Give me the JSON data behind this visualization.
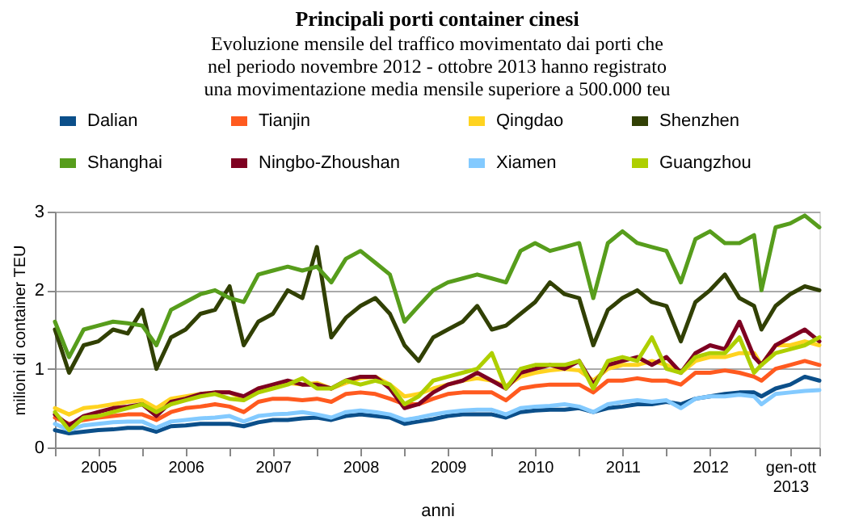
{
  "chart_data": {
    "type": "line",
    "title": "Principali porti container cinesi",
    "subtitle": "Evoluzione mensile del traffico movimentato dai porti che\nnel periodo novembre 2012 - ottobre 2013 hanno registrato\nuna movimentazione media mensile superiore a 500.000 teu",
    "xlabel": "anni",
    "ylabel": "milioni di container TEU",
    "x": [
      "2005-01",
      "2005-03",
      "2005-05",
      "2005-07",
      "2005-09",
      "2005-11",
      "2006-01",
      "2006-03",
      "2006-05",
      "2006-07",
      "2006-09",
      "2006-11",
      "2007-01",
      "2007-03",
      "2007-05",
      "2007-07",
      "2007-09",
      "2007-11",
      "2008-01",
      "2008-03",
      "2008-05",
      "2008-07",
      "2008-09",
      "2008-11",
      "2009-01",
      "2009-03",
      "2009-05",
      "2009-07",
      "2009-09",
      "2009-11",
      "2010-01",
      "2010-03",
      "2010-05",
      "2010-07",
      "2010-09",
      "2010-11",
      "2011-01",
      "2011-03",
      "2011-05",
      "2011-07",
      "2011-09",
      "2011-11",
      "2012-01",
      "2012-03",
      "2012-05",
      "2012-07",
      "2012-09",
      "2012-11",
      "2013-01",
      "2013-02",
      "2013-04",
      "2013-06",
      "2013-08",
      "2013-10"
    ],
    "series": [
      {
        "name": "Dalian",
        "color": "#0b4f8a",
        "values": [
          0.22,
          0.18,
          0.2,
          0.22,
          0.23,
          0.25,
          0.25,
          0.2,
          0.27,
          0.28,
          0.3,
          0.3,
          0.3,
          0.27,
          0.32,
          0.35,
          0.35,
          0.37,
          0.38,
          0.35,
          0.4,
          0.42,
          0.4,
          0.38,
          0.3,
          0.33,
          0.36,
          0.4,
          0.42,
          0.42,
          0.42,
          0.38,
          0.45,
          0.47,
          0.48,
          0.48,
          0.5,
          0.45,
          0.5,
          0.52,
          0.55,
          0.55,
          0.58,
          0.55,
          0.62,
          0.65,
          0.68,
          0.7,
          0.7,
          0.65,
          0.75,
          0.8,
          0.9,
          0.85
        ]
      },
      {
        "name": "Tianjin",
        "color": "#ff5a1f",
        "values": [
          0.38,
          0.3,
          0.35,
          0.38,
          0.4,
          0.42,
          0.42,
          0.35,
          0.45,
          0.5,
          0.52,
          0.55,
          0.52,
          0.45,
          0.58,
          0.62,
          0.62,
          0.6,
          0.62,
          0.58,
          0.68,
          0.7,
          0.68,
          0.62,
          0.55,
          0.55,
          0.62,
          0.68,
          0.7,
          0.7,
          0.7,
          0.6,
          0.75,
          0.78,
          0.8,
          0.8,
          0.8,
          0.7,
          0.85,
          0.85,
          0.88,
          0.85,
          0.85,
          0.8,
          0.95,
          0.95,
          0.98,
          0.95,
          0.9,
          0.85,
          1.0,
          1.05,
          1.1,
          1.05
        ]
      },
      {
        "name": "Qingdao",
        "color": "#ffd320",
        "values": [
          0.5,
          0.42,
          0.5,
          0.52,
          0.55,
          0.58,
          0.6,
          0.5,
          0.62,
          0.65,
          0.68,
          0.7,
          0.7,
          0.62,
          0.75,
          0.78,
          0.82,
          0.8,
          0.82,
          0.75,
          0.82,
          0.88,
          0.9,
          0.8,
          0.65,
          0.68,
          0.75,
          0.8,
          0.85,
          0.88,
          0.85,
          0.78,
          0.9,
          0.95,
          0.98,
          1.0,
          0.98,
          0.85,
          1.0,
          1.05,
          1.05,
          1.1,
          1.05,
          0.95,
          1.1,
          1.15,
          1.15,
          1.2,
          1.2,
          1.05,
          1.3,
          1.3,
          1.35,
          1.3
        ]
      },
      {
        "name": "Shenzhen",
        "color": "#314004",
        "values": [
          1.5,
          0.95,
          1.3,
          1.35,
          1.5,
          1.45,
          1.75,
          1.0,
          1.4,
          1.5,
          1.7,
          1.75,
          2.05,
          1.3,
          1.6,
          1.7,
          2.0,
          1.9,
          2.55,
          1.4,
          1.65,
          1.8,
          1.9,
          1.7,
          1.3,
          1.1,
          1.4,
          1.5,
          1.6,
          1.8,
          1.5,
          1.55,
          1.7,
          1.85,
          2.1,
          1.95,
          1.9,
          1.3,
          1.75,
          1.9,
          2.0,
          1.85,
          1.8,
          1.35,
          1.85,
          2.0,
          2.2,
          1.9,
          1.8,
          1.5,
          1.8,
          1.95,
          2.05,
          2.0
        ]
      },
      {
        "name": "Shanghai",
        "color": "#579d1c",
        "values": [
          1.6,
          1.15,
          1.5,
          1.55,
          1.6,
          1.58,
          1.55,
          1.3,
          1.75,
          1.85,
          1.95,
          2.0,
          1.9,
          1.85,
          2.2,
          2.25,
          2.3,
          2.25,
          2.3,
          2.1,
          2.4,
          2.5,
          2.35,
          2.2,
          1.6,
          1.8,
          2.0,
          2.1,
          2.15,
          2.2,
          2.15,
          2.1,
          2.5,
          2.6,
          2.5,
          2.55,
          2.6,
          1.9,
          2.6,
          2.75,
          2.6,
          2.55,
          2.5,
          2.1,
          2.65,
          2.75,
          2.6,
          2.6,
          2.7,
          2.0,
          2.8,
          2.85,
          2.95,
          2.8
        ]
      },
      {
        "name": "Ningbo-Zhoushan",
        "color": "#7e0021",
        "values": [
          0.42,
          0.28,
          0.4,
          0.45,
          0.5,
          0.52,
          0.55,
          0.4,
          0.58,
          0.62,
          0.68,
          0.7,
          0.7,
          0.65,
          0.75,
          0.8,
          0.85,
          0.8,
          0.8,
          0.75,
          0.85,
          0.9,
          0.9,
          0.75,
          0.5,
          0.55,
          0.7,
          0.8,
          0.85,
          0.95,
          0.85,
          0.75,
          0.95,
          1.0,
          1.05,
          1.0,
          1.1,
          0.8,
          1.05,
          1.1,
          1.15,
          1.05,
          1.15,
          0.95,
          1.2,
          1.3,
          1.25,
          1.6,
          1.15,
          1.05,
          1.3,
          1.4,
          1.5,
          1.35
        ]
      },
      {
        "name": "Xiamen",
        "color": "#83caff",
        "values": [
          0.3,
          0.22,
          0.28,
          0.3,
          0.32,
          0.33,
          0.33,
          0.25,
          0.33,
          0.35,
          0.37,
          0.38,
          0.4,
          0.33,
          0.4,
          0.42,
          0.43,
          0.45,
          0.42,
          0.38,
          0.45,
          0.47,
          0.45,
          0.42,
          0.35,
          0.38,
          0.42,
          0.45,
          0.47,
          0.48,
          0.48,
          0.42,
          0.5,
          0.52,
          0.53,
          0.55,
          0.52,
          0.45,
          0.55,
          0.58,
          0.6,
          0.58,
          0.6,
          0.5,
          0.62,
          0.65,
          0.65,
          0.67,
          0.65,
          0.55,
          0.68,
          0.7,
          0.72,
          0.73
        ]
      },
      {
        "name": "Guangzhou",
        "color": "#aecf00",
        "values": [
          0.45,
          0.22,
          0.38,
          0.4,
          0.45,
          0.5,
          0.55,
          0.45,
          0.55,
          0.6,
          0.65,
          0.68,
          0.62,
          0.6,
          0.7,
          0.75,
          0.8,
          0.88,
          0.75,
          0.75,
          0.85,
          0.8,
          0.85,
          0.8,
          0.55,
          0.65,
          0.85,
          0.9,
          0.95,
          1.0,
          1.2,
          0.75,
          1.0,
          1.05,
          1.05,
          1.05,
          1.1,
          0.75,
          1.1,
          1.15,
          1.1,
          1.4,
          1.0,
          0.95,
          1.15,
          1.2,
          1.2,
          1.4,
          0.95,
          1.05,
          1.2,
          1.25,
          1.3,
          1.4
        ]
      }
    ],
    "xlim": [
      "2005-01",
      "2013-10"
    ],
    "xticks": [
      {
        "value": "2005-01",
        "label": null
      },
      {
        "value": "2005-07",
        "label": "2005"
      },
      {
        "value": "2006-01",
        "label": null
      },
      {
        "value": "2006-07",
        "label": "2006"
      },
      {
        "value": "2007-01",
        "label": null
      },
      {
        "value": "2007-07",
        "label": "2007"
      },
      {
        "value": "2008-01",
        "label": null
      },
      {
        "value": "2008-07",
        "label": "2008"
      },
      {
        "value": "2009-01",
        "label": null
      },
      {
        "value": "2009-07",
        "label": "2009"
      },
      {
        "value": "2010-01",
        "label": null
      },
      {
        "value": "2010-07",
        "label": "2010"
      },
      {
        "value": "2011-01",
        "label": null
      },
      {
        "value": "2011-07",
        "label": "2011"
      },
      {
        "value": "2012-01",
        "label": null
      },
      {
        "value": "2012-07",
        "label": "2012"
      },
      {
        "value": "2013-01",
        "label": null
      },
      {
        "value": "2013-06",
        "label": "gen-ott\n2013"
      },
      {
        "value": "2013-10",
        "label": null
      }
    ],
    "ylim": [
      0,
      3
    ],
    "yticks": [
      0,
      1,
      2,
      3
    ],
    "grid": "y",
    "legend": "top",
    "marker": "none",
    "line_style": "solid"
  }
}
